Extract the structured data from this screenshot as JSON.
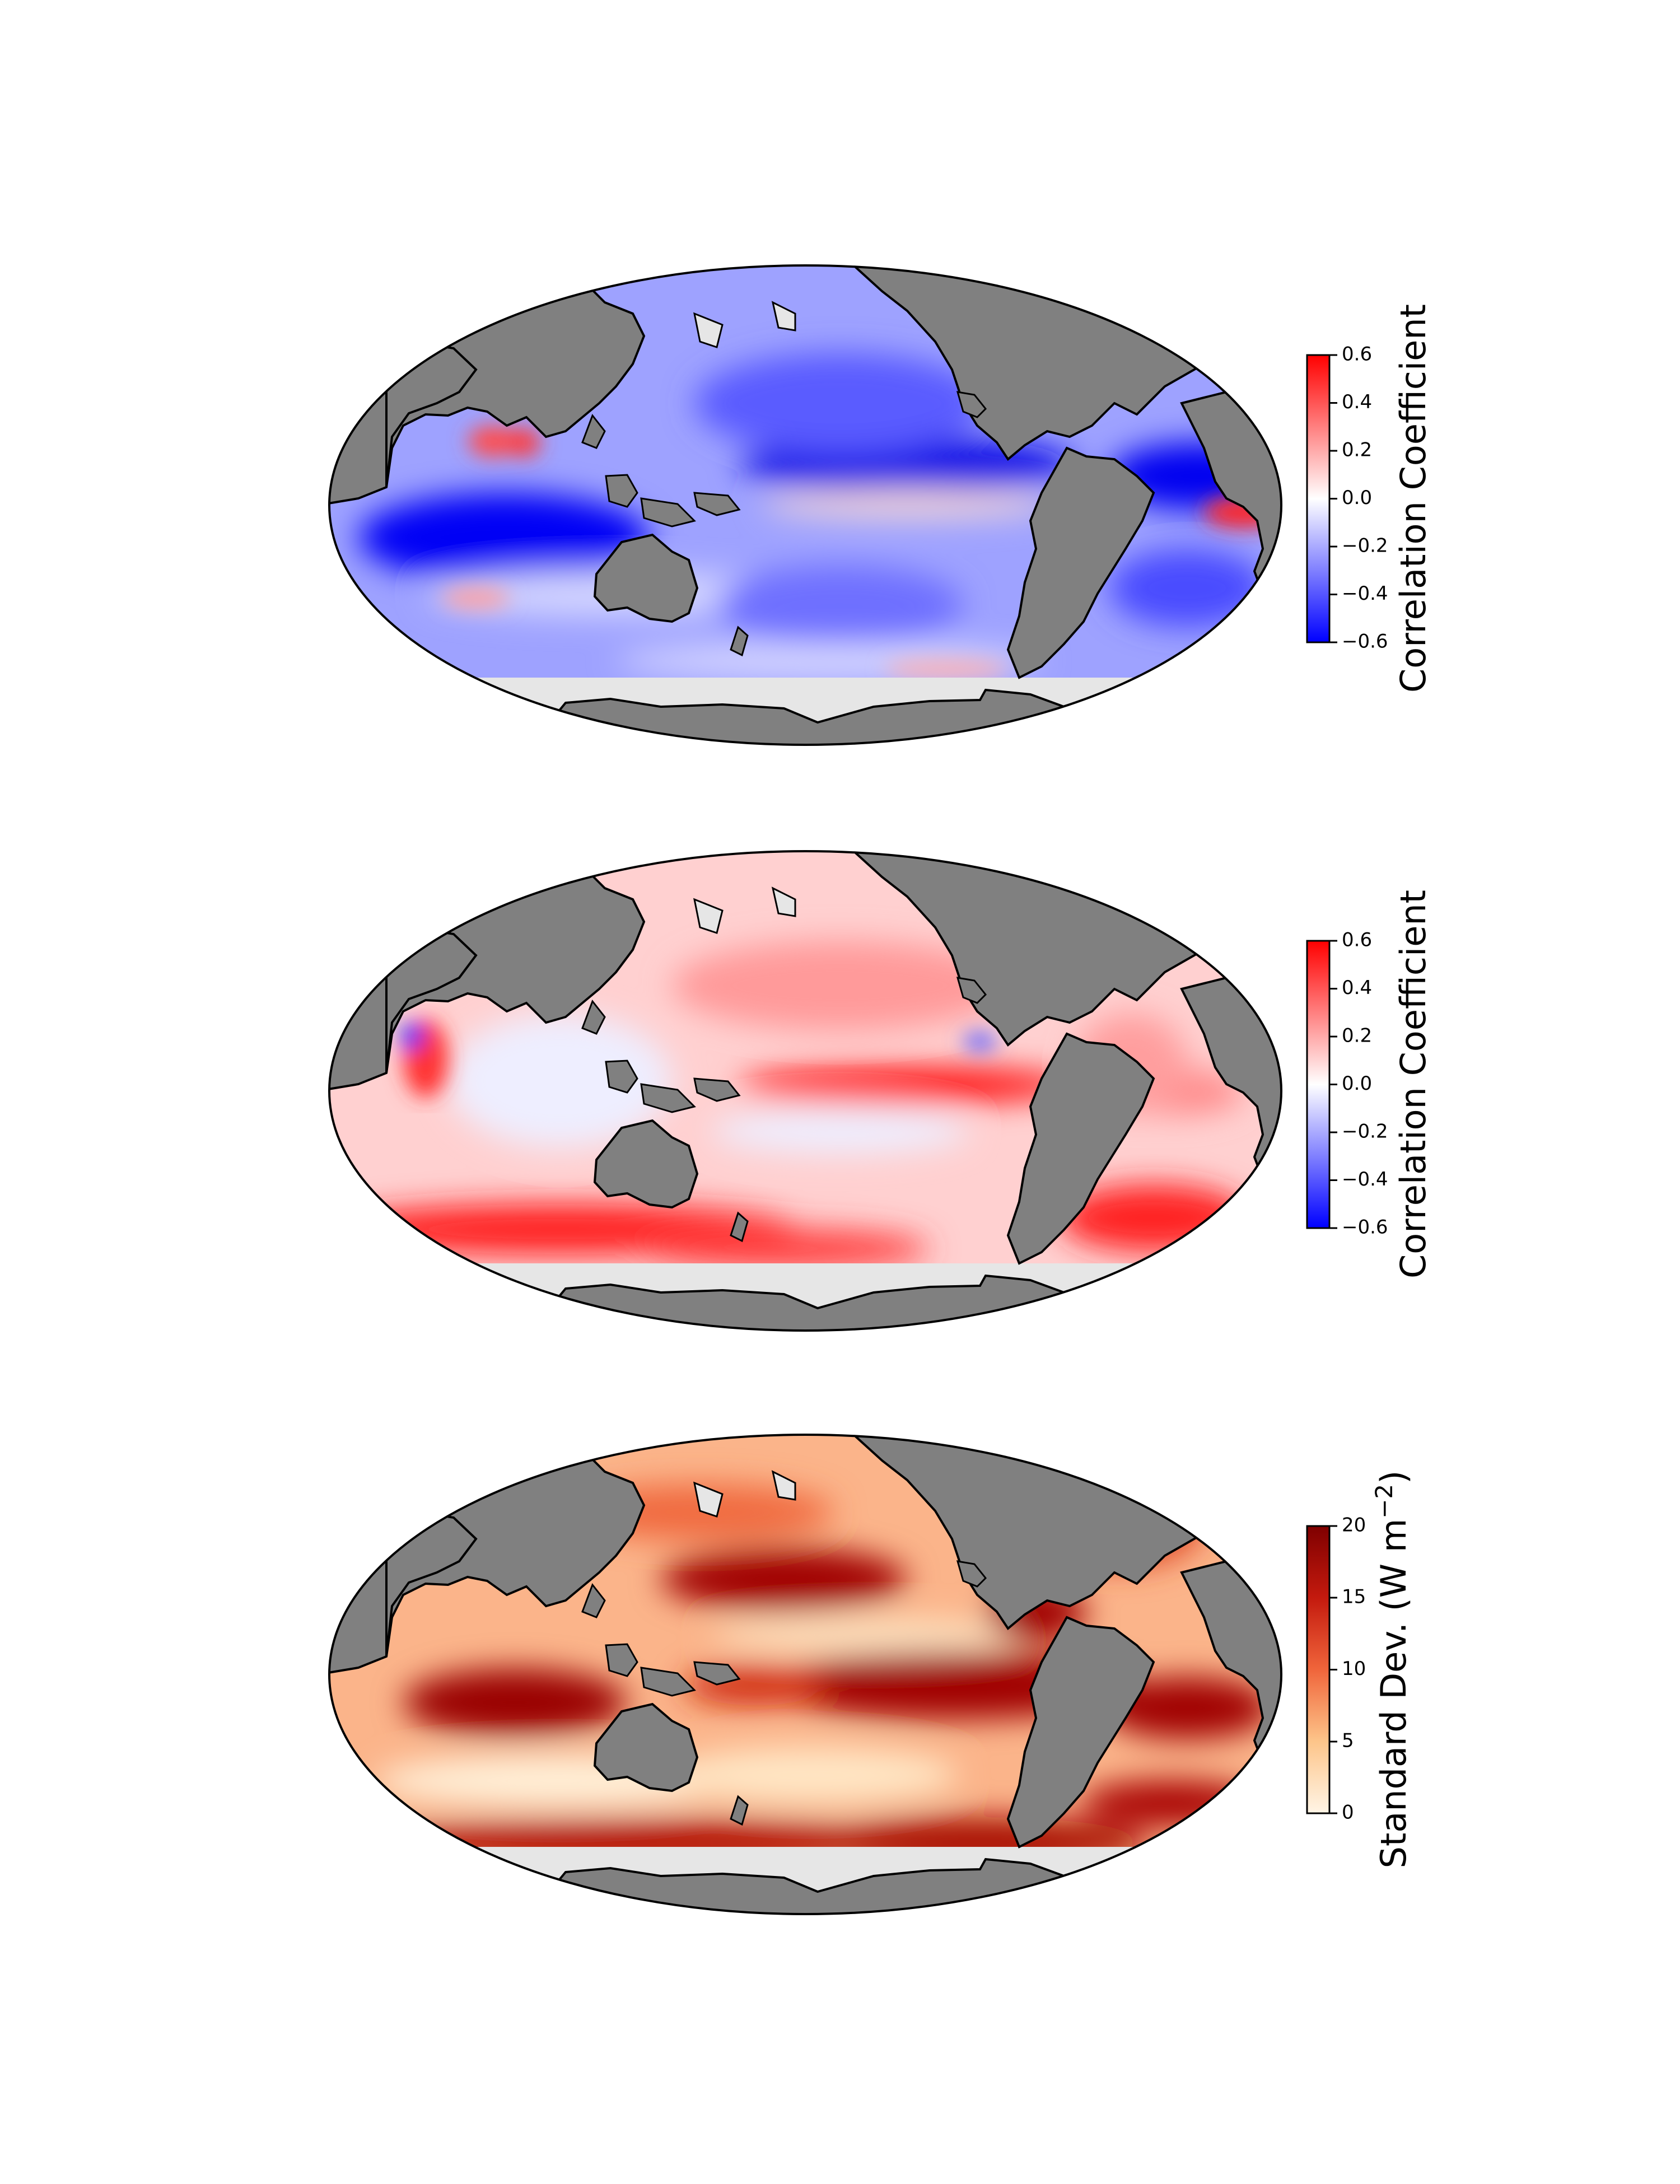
{
  "panels": [
    {
      "colorbar_label": "Correlation Coefficient",
      "colorbar_ticks": [
        "0.6",
        "0.4",
        "0.2",
        "0.0",
        "−0.2",
        "−0.4",
        "−0.6"
      ],
      "colormap": [
        "#0000ff",
        "#ffffff",
        "#ff0000"
      ],
      "field": "mostly negative correlation over oceans, positive off Arabia, Angola and in the far south"
    },
    {
      "colorbar_label": "Correlation Coefficient",
      "colorbar_ticks": [
        "0.6",
        "0.4",
        "0.2",
        "0.0",
        "−0.2",
        "−0.4",
        "−0.6"
      ],
      "colormap": [
        "#0000ff",
        "#ffffff",
        "#ff0000"
      ],
      "field": "mostly positive correlation, strongest along the equatorial Pacific and Southern Ocean"
    },
    {
      "colorbar_label_main": "Standard Dev. (W m",
      "colorbar_label_sup": "−2",
      "colorbar_label_end": ")",
      "colorbar_ticks": [
        "20",
        "15",
        "10",
        "5",
        "0"
      ],
      "colormap": [
        "#fff5e6",
        "#fdc58a",
        "#f0653b",
        "#b30000",
        "#7f0000"
      ],
      "field": "high variability in subtropical gyres and Southern Ocean"
    }
  ],
  "colors": {
    "land": "#808080",
    "sea_ice": "#e6e6e6",
    "coastline": "#000000"
  }
}
